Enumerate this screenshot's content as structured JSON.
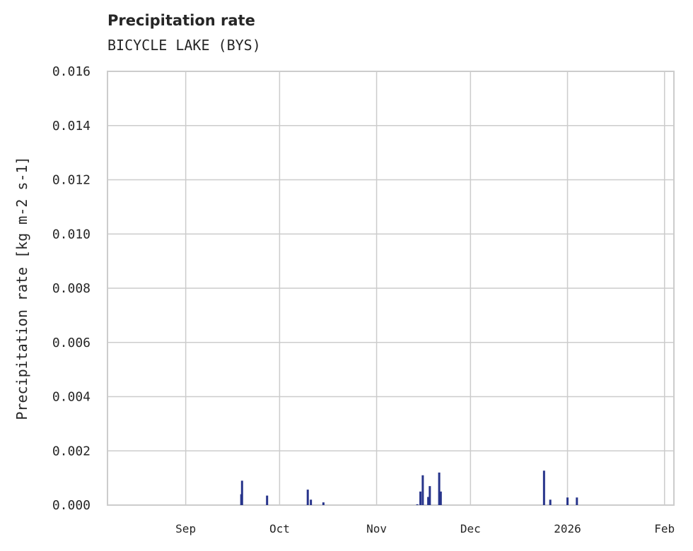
{
  "chart_data": {
    "type": "bar",
    "title": "Precipitation rate",
    "subtitle": "BICYCLE LAKE (BYS)",
    "xlabel": "",
    "ylabel": "Precipitation rate [kg m-2 s-1]",
    "ylim": [
      0,
      0.016
    ],
    "xlim": [
      "2025-08-07",
      "2026-02-04"
    ],
    "yticks": [
      "0.000",
      "0.002",
      "0.004",
      "0.006",
      "0.008",
      "0.010",
      "0.012",
      "0.014",
      "0.016"
    ],
    "xticks": [
      {
        "date": "2025-09-01",
        "label": "Sep"
      },
      {
        "date": "2025-10-01",
        "label": "Oct"
      },
      {
        "date": "2025-11-01",
        "label": "Nov"
      },
      {
        "date": "2025-12-01",
        "label": "Dec"
      },
      {
        "date": "2026-01-01",
        "label": "2026"
      },
      {
        "date": "2026-02-01",
        "label": "Feb"
      }
    ],
    "grid": true,
    "color": "#27348b",
    "series": [
      {
        "name": "Precipitation rate",
        "points": [
          {
            "date": "2025-09-18T18:00",
            "value": 0.0004
          },
          {
            "date": "2025-09-19",
            "value": 0.0009
          },
          {
            "date": "2025-09-27",
            "value": 0.00035
          },
          {
            "date": "2025-10-10",
            "value": 0.00057
          },
          {
            "date": "2025-10-11",
            "value": 0.0002
          },
          {
            "date": "2025-10-15",
            "value": 0.0001
          },
          {
            "date": "2025-11-14",
            "value": 3e-05
          },
          {
            "date": "2025-11-15",
            "value": 0.0005
          },
          {
            "date": "2025-11-15T18:00",
            "value": 0.0011
          },
          {
            "date": "2025-11-17T12:00",
            "value": 0.0003
          },
          {
            "date": "2025-11-18",
            "value": 0.0007
          },
          {
            "date": "2025-11-21",
            "value": 0.0012
          },
          {
            "date": "2025-11-21T12:00",
            "value": 0.0005
          },
          {
            "date": "2025-12-24T12:00",
            "value": 0.00127
          },
          {
            "date": "2025-12-26T12:00",
            "value": 0.0002
          },
          {
            "date": "2026-01-01",
            "value": 0.00028
          },
          {
            "date": "2026-01-04",
            "value": 0.00028
          }
        ]
      }
    ]
  }
}
